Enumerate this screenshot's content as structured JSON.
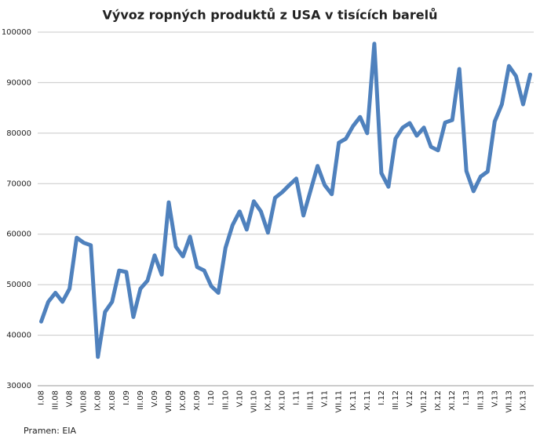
{
  "chart_data": {
    "type": "line",
    "title": "Vývoz ropných produktů z USA v tisících barelů",
    "source": "Pramen: EIA",
    "categories": [
      "I.08",
      null,
      "III.08",
      null,
      "V.08",
      null,
      "VII.08",
      null,
      "IX.08",
      null,
      "XI.08",
      null,
      "I.09",
      null,
      "III.09",
      null,
      "V.09",
      null,
      "VII.09",
      null,
      "IX.09",
      null,
      "XI.09",
      null,
      "I.10",
      null,
      "III.10",
      null,
      "V.10",
      null,
      "VII.10",
      null,
      "IX.10",
      null,
      "XI.10",
      null,
      "I.11",
      null,
      "III.11",
      null,
      "V.11",
      null,
      "VII.11",
      null,
      "IX.11",
      null,
      "XI.11",
      null,
      "I.12",
      null,
      "III.12",
      null,
      "V.12",
      null,
      "VII.12",
      null,
      "IX.12",
      null,
      "XI.12",
      null,
      "I.13",
      null,
      "III.13",
      null,
      "V.13",
      null,
      "VII.13",
      null,
      "IX.13",
      null
    ],
    "values": [
      42700,
      46600,
      48400,
      46600,
      49200,
      59300,
      58300,
      57800,
      35700,
      44600,
      46600,
      52800,
      52500,
      43600,
      49200,
      50800,
      55800,
      52000,
      66300,
      57500,
      55600,
      59500,
      53500,
      52800,
      49700,
      48400,
      57300,
      61800,
      64500,
      60900,
      66500,
      64500,
      60300,
      67200,
      68300,
      69700,
      71000,
      63700,
      68600,
      73500,
      69700,
      67900,
      78100,
      78900,
      81400,
      83200,
      80000,
      97700,
      72100,
      69400,
      78900,
      81100,
      82000,
      79500,
      81100,
      77300,
      76600,
      82100,
      82600,
      92700,
      72500,
      68500,
      71400,
      72400,
      82300,
      85700,
      93300,
      91300,
      85700,
      91600
    ],
    "color": "#4f81bd",
    "ylim": [
      30000,
      100000
    ],
    "yticks": [
      30000,
      40000,
      50000,
      60000,
      70000,
      80000,
      90000,
      100000
    ],
    "grid": true
  }
}
